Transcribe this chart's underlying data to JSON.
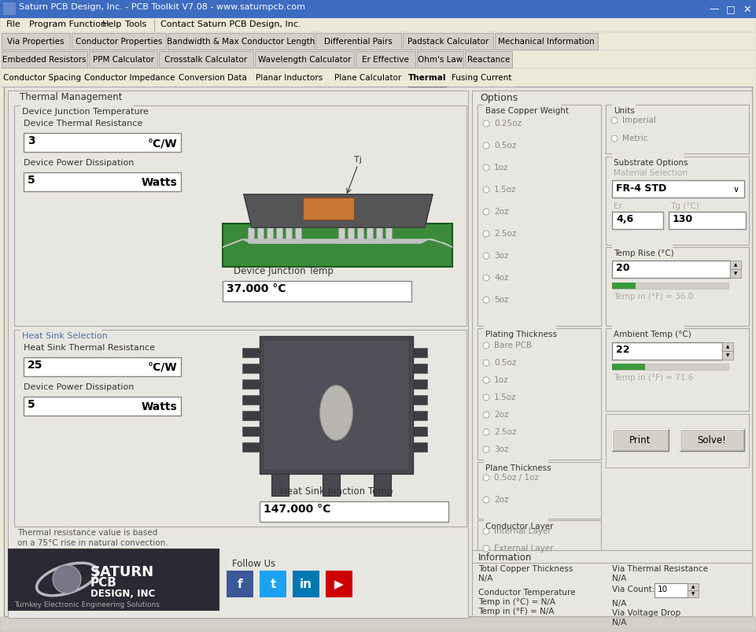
{
  "title_bar": "Saturn PCB Design, Inc. - PCB Toolkit V7.08 - www.saturnpcb.com",
  "menu_items": [
    "File",
    "Program Function",
    "Help",
    "Tools",
    "|",
    "Contact Saturn PCB Design, Inc."
  ],
  "toolbar_row1": [
    "Via Properties",
    "Conductor Properties",
    "Bandwidth & Max Conductor Length",
    "Differential Pairs",
    "Padstack Calculator",
    "Mechanical Information"
  ],
  "toolbar_row2": [
    "Embedded Resistors",
    "PPM Calculator",
    "Crosstalk Calculator",
    "Wavelength Calculator",
    "Er Effective",
    "Ohm's Law",
    "Reactance"
  ],
  "toolbar_row3": [
    "Conductor Spacing",
    "Conductor Impedance",
    "Conversion Data",
    "Planar Inductors",
    "Plane Calculator",
    "Thermal",
    "Fusing Current"
  ],
  "active_tab": "Thermal",
  "bg_color": "#ece9d8",
  "titlebar_color": "#0a246a",
  "titlebar_active": "#3d6cc0",
  "menubar_bg": "#ece9d8",
  "toolbar_bg": "#ece9d8",
  "tab_active_bg": "#ffffff",
  "tab_inactive_bg": "#d4d0c8",
  "panel_bg": "#e8e6e0",
  "group_bg": "#e8e6e0",
  "input_bg": "#ffffff",
  "button_bg": "#d4d0c8",
  "dark_panel_bg": "#2a2a30",
  "green_pcb": "#3a9a3a",
  "green_slider": "#3a9a3a",
  "radio_color": "#aaaaaa",
  "heatsink_color": "#484850",
  "chip_body": "#505055",
  "chip_orange": "#c87832",
  "logo_text": "#ffffff",
  "social_fb": "#3b5998",
  "social_tw": "#1da1f2",
  "social_li": "#0077b5",
  "social_yt": "#cc0000"
}
